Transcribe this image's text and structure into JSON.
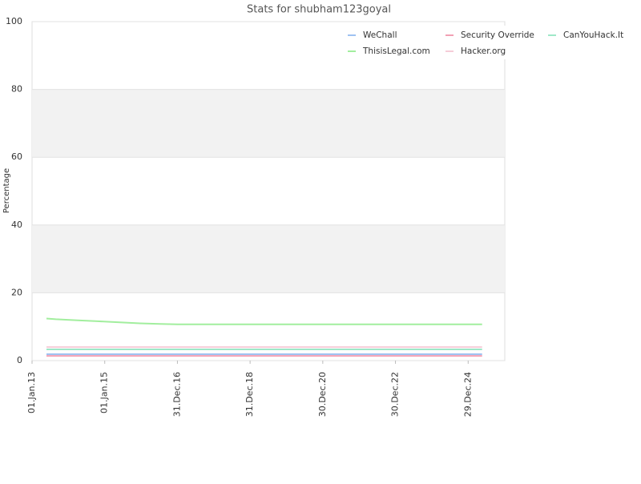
{
  "chart_data": {
    "type": "line",
    "title": "Stats for shubham123goyal",
    "y_label": "Percentage",
    "xlim": [
      "2013-01-01",
      "2026-01-01"
    ],
    "xticks": [
      {
        "value": "2013-01-01",
        "label": "01.Jan.13"
      },
      {
        "value": "2015-01-01",
        "label": "01.Jan.15"
      },
      {
        "value": "2016-12-31",
        "label": "31.Dec.16"
      },
      {
        "value": "2018-12-31",
        "label": "31.Dec.18"
      },
      {
        "value": "2020-12-30",
        "label": "30.Dec.20"
      },
      {
        "value": "2022-12-30",
        "label": "30.Dec.22"
      },
      {
        "value": "2024-12-29",
        "label": "29.Dec.24"
      }
    ],
    "ylim": [
      0,
      100
    ],
    "yticks": [
      0,
      20,
      40,
      60,
      80,
      100
    ],
    "grid": true,
    "bands": true,
    "legend": "top-right",
    "x": [
      "2013-05-26",
      "2013-08-28",
      "2014-04-05",
      "2014-10-22",
      "2015-06-01",
      "2015-12-20",
      "2016-07-08",
      "2017-01-05",
      "2025-05-18"
    ],
    "series": [
      {
        "name": "WeChall",
        "color": "#9ec2f2",
        "values": [
          1.9,
          1.9,
          1.9,
          1.9,
          1.9,
          1.9,
          1.9,
          1.9,
          1.9
        ]
      },
      {
        "name": "Security Override",
        "color": "#f2a0b4",
        "values": [
          1.4,
          1.4,
          1.4,
          1.4,
          1.4,
          1.4,
          1.4,
          1.4,
          1.4
        ]
      },
      {
        "name": "CanYouHack.It",
        "color": "#9ee8c8",
        "values": [
          3.3,
          3.3,
          3.3,
          3.3,
          3.3,
          3.3,
          3.3,
          3.3,
          3.3
        ]
      },
      {
        "name": "ThisisLegal.com",
        "color": "#a2ee9e",
        "values": [
          12.4,
          12.2,
          11.9,
          11.6,
          11.3,
          11.0,
          10.8,
          10.7,
          10.7
        ]
      },
      {
        "name": "Hacker.org",
        "color": "#f6ccd8",
        "values": [
          4.0,
          4.0,
          4.0,
          4.0,
          4.0,
          4.0,
          4.0,
          4.0,
          4.0
        ]
      }
    ]
  }
}
